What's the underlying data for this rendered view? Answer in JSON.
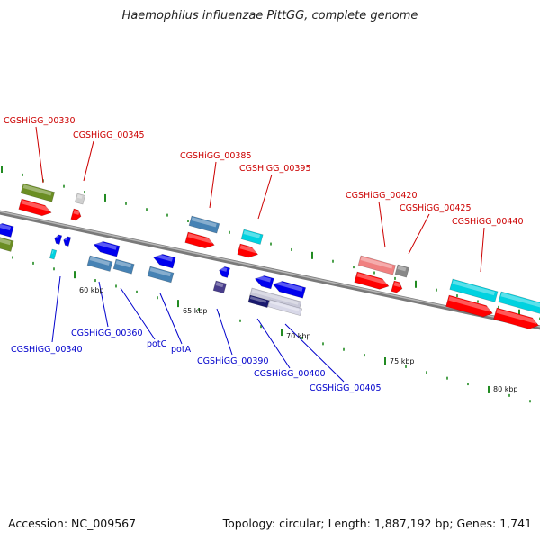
{
  "title": "Haemophilus influenzae PittGG, complete genome",
  "footer": {
    "accession": "Accession: NC_009567",
    "summary": "Topology: circular; Length: 1,887,192 bp; Genes: 1,741"
  },
  "colors": {
    "forward": "#ff0000",
    "reverse": "#0000ee",
    "steelblue": "#4682b4",
    "olive": "#6b8e23",
    "cyan": "#00d2e0",
    "pink": "#f08080",
    "grey": "#888888",
    "navy": "#1a1a6e",
    "slate": "#483d8b",
    "label_forward": "#cc0000",
    "label_reverse": "#0000cc",
    "tick_mark": "#228b22"
  },
  "scale": {
    "unit": "kbp",
    "labels": [
      {
        "text": "60 kbp",
        "kbp": 60
      },
      {
        "text": "65 kbp",
        "kbp": 65
      },
      {
        "text": "70 kbp",
        "kbp": 70
      },
      {
        "text": "75 kbp",
        "kbp": 75
      },
      {
        "text": "80 kbp",
        "kbp": 80
      }
    ]
  },
  "gene_labels": {
    "forward": [
      {
        "name": "CGSHiGG_00330"
      },
      {
        "name": "CGSHiGG_00345"
      },
      {
        "name": "CGSHiGG_00385"
      },
      {
        "name": "CGSHiGG_00395"
      },
      {
        "name": "CGSHiGG_00420"
      },
      {
        "name": "CGSHiGG_00425"
      },
      {
        "name": "CGSHiGG_00440"
      }
    ],
    "reverse": [
      {
        "name": "CGSHiGG_00340"
      },
      {
        "name": "CGSHiGG_00360"
      },
      {
        "name": "potC"
      },
      {
        "name": "potA"
      },
      {
        "name": "CGSHiGG_00390"
      },
      {
        "name": "CGSHiGG_00400"
      },
      {
        "name": "CGSHiGG_00405"
      }
    ]
  }
}
